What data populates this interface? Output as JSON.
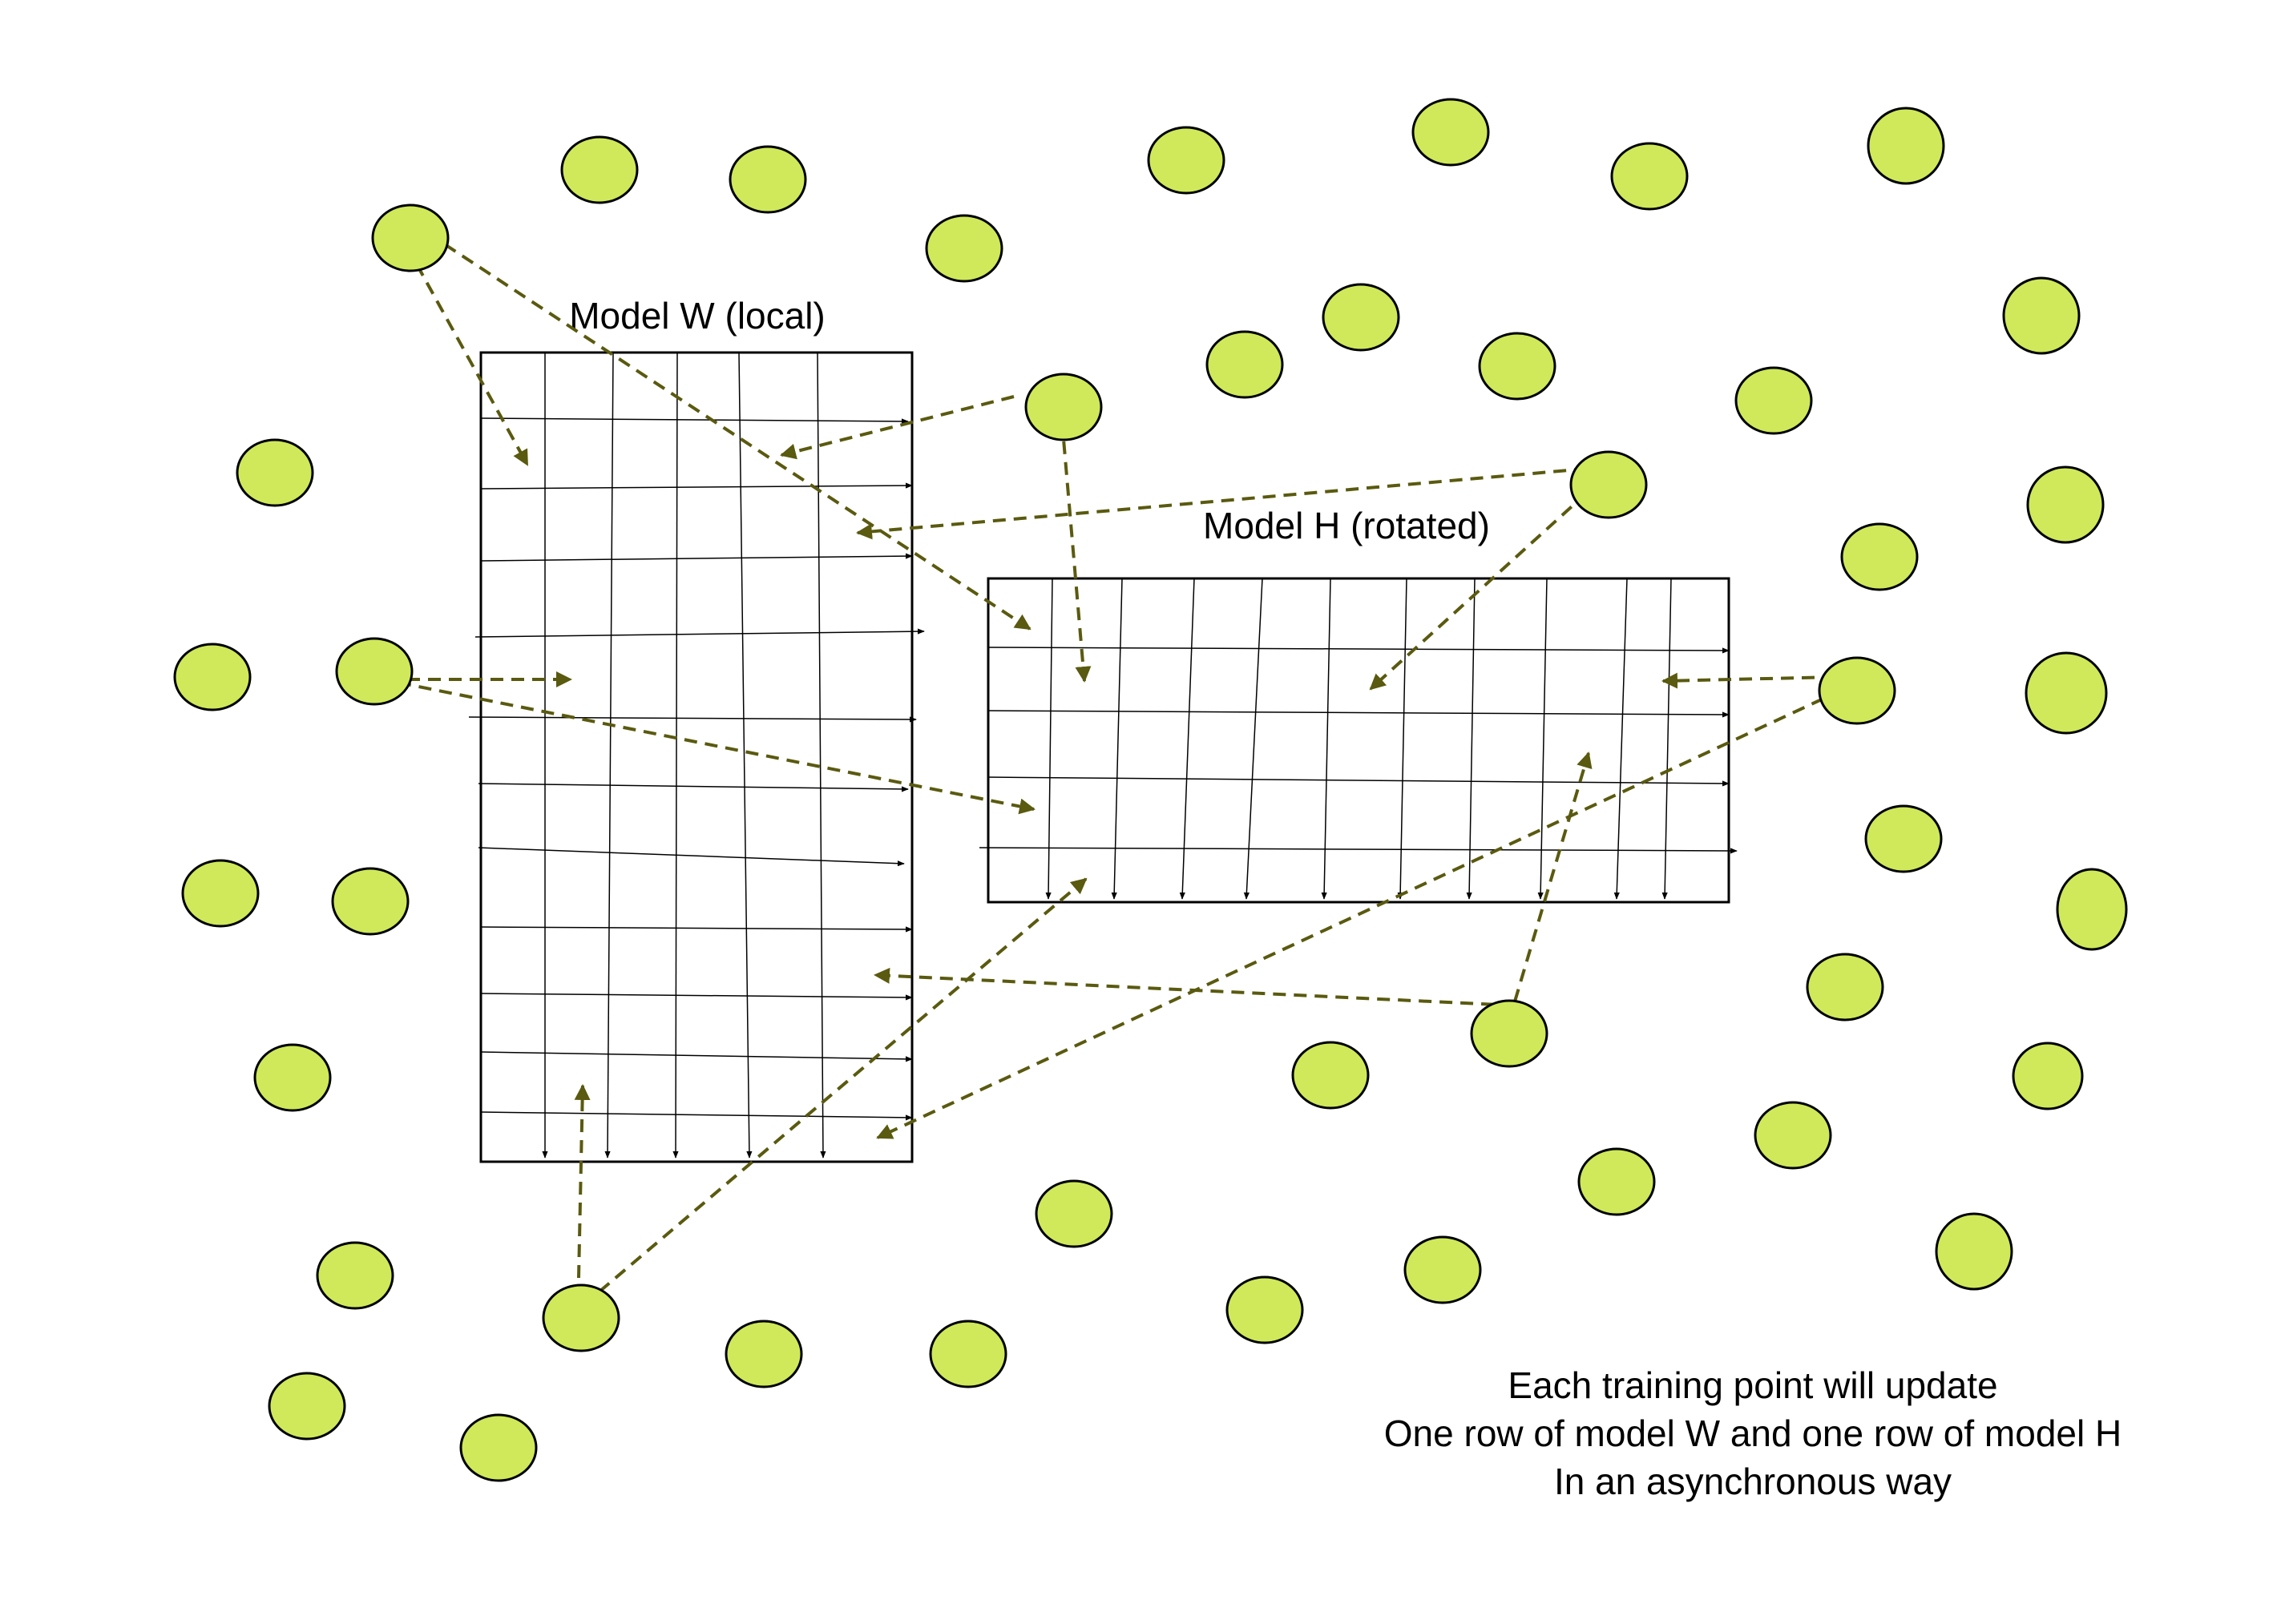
{
  "model_w": {
    "title": "Model W (local)"
  },
  "model_h": {
    "title": "Model H (rotated)"
  },
  "caption": {
    "line1": "Each training point will update",
    "line2": "One row of model W and one row of model H",
    "line3": "In an asynchronous way"
  },
  "colors": {
    "training_point_fill": "#cfe95a",
    "training_point_stroke": "#000000",
    "update_arrow": "#5a5a10",
    "grid_line": "#000000"
  }
}
